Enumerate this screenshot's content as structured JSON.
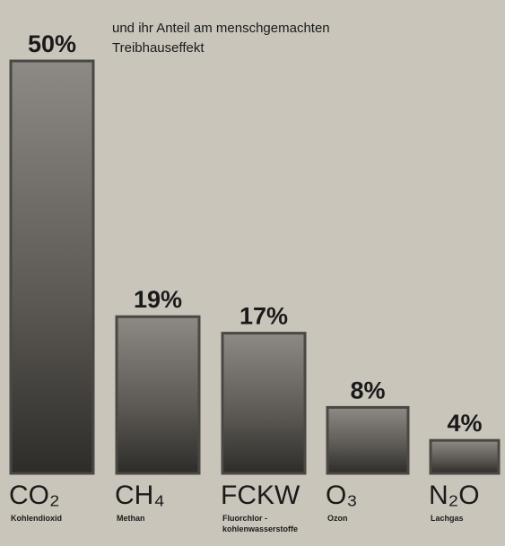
{
  "chart_data": {
    "type": "bar",
    "subtitle": [
      "und ihr Anteil am menschgemachten",
      "Treibhauseffekt"
    ],
    "categories": [
      "CO₂",
      "CH₄",
      "FCKW",
      "O₃",
      "N₂O"
    ],
    "sublabels": [
      [
        "Kohlendioxid"
      ],
      [
        "Methan"
      ],
      [
        "Fluorchlor -",
        "kohlenwasserstoffe"
      ],
      [
        "Ozon"
      ],
      [
        "Lachgas"
      ]
    ],
    "values": [
      50,
      19,
      17,
      8,
      4
    ],
    "value_labels": [
      "50%",
      "19%",
      "17%",
      "8%",
      "4%"
    ],
    "color": "#4a4844",
    "ylim": [
      0,
      50
    ]
  }
}
